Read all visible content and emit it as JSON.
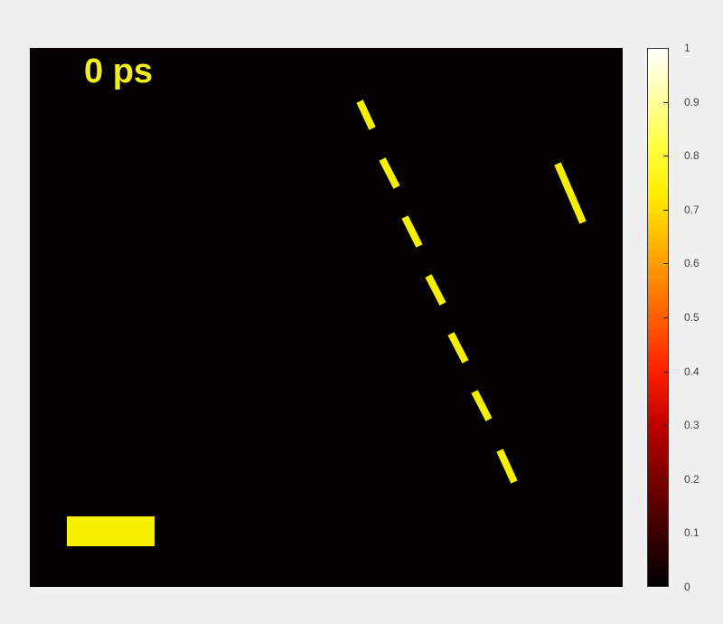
{
  "chart_data": {
    "type": "heatmap",
    "annotation": "0 ps",
    "colormap": "hot",
    "clim": [
      0,
      1
    ],
    "colorbar": {
      "ticks": [
        0,
        0.1,
        0.2,
        0.3,
        0.4,
        0.5,
        0.6,
        0.7,
        0.8,
        0.9,
        1
      ],
      "tick_labels": [
        "0",
        "0.1",
        "0.2",
        "0.3",
        "0.4",
        "0.5",
        "0.6",
        "0.7",
        "0.8",
        "0.9",
        "1"
      ]
    },
    "features_color": "#f5f000",
    "background_value": 0
  }
}
